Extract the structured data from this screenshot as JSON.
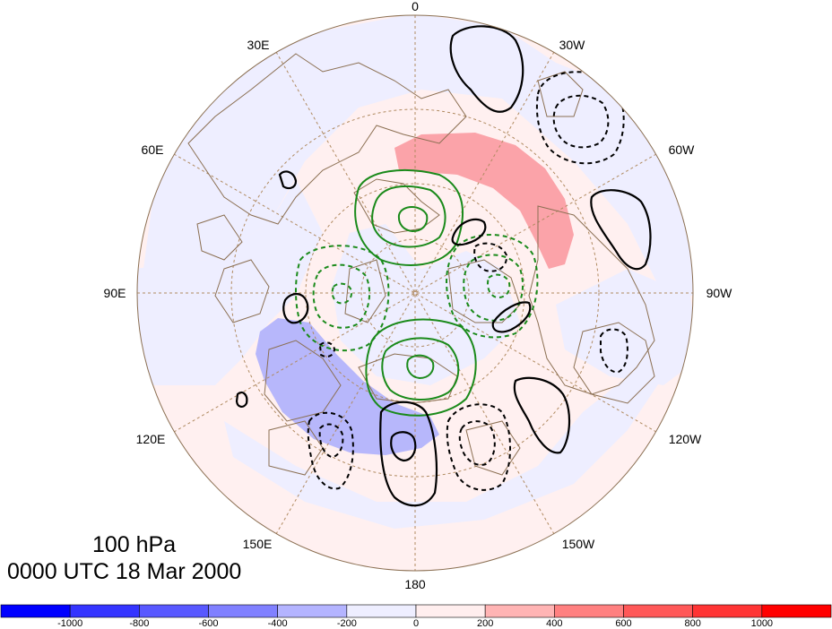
{
  "title": {
    "level": "100 hPa",
    "time": "0000 UTC 18 Mar 2000"
  },
  "longitude_labels": {
    "0": "0",
    "30E": "30E",
    "30W": "30W",
    "60E": "60E",
    "60W": "60W",
    "90E": "90E",
    "90W": "90W",
    "120E": "120E",
    "120W": "120W",
    "150E": "150E",
    "150W": "150W",
    "180": "180"
  },
  "colorbar": {
    "tick_labels": [
      "-1000",
      "-800",
      "-600",
      "-400",
      "-200",
      "0",
      "200",
      "400",
      "600",
      "800",
      "1000"
    ],
    "colors": [
      "#0000ff",
      "#3434ff",
      "#5858ff",
      "#8080ff",
      "#b4b4ff",
      "#eeeeff",
      "#ffeeee",
      "#ffb4b4",
      "#ff8080",
      "#ff5858",
      "#ff3434",
      "#ff0000"
    ]
  },
  "colors": {
    "positive_fill": "#fba3a9",
    "negative_fill": "#b7b7fb",
    "light_positive": "#fff0f0",
    "light_negative": "#eeeeff",
    "green_contour": "#1a8a1a",
    "black_contour": "#000000",
    "coastline": "#8b6f52",
    "graticule": "#b08a60"
  }
}
